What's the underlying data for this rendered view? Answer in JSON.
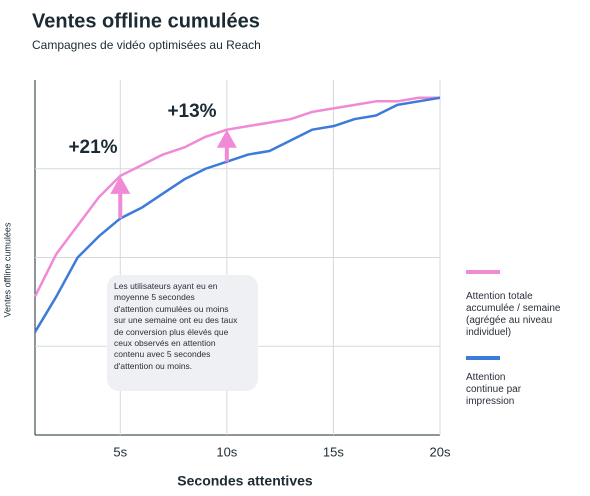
{
  "chart_data": {
    "type": "line",
    "title": "Ventes offline cumulées",
    "subtitle": "Campagnes de vidéo optimisées au Reach",
    "x_label": "Secondes attentives",
    "y_label": "Ventes offline cumulées",
    "x": [
      1,
      2,
      3,
      4,
      5,
      6,
      7,
      8,
      9,
      10,
      11,
      12,
      13,
      14,
      15,
      16,
      17,
      18,
      19,
      20
    ],
    "series": [
      {
        "name": "Attention totale accumulée / semaine (agrégée au niveau individuel)",
        "color": "#f08ad6",
        "values": [
          39,
          51,
          59,
          67,
          73,
          76,
          79,
          81,
          84,
          86,
          87,
          88,
          89,
          91,
          92,
          93,
          94,
          94,
          95,
          95
        ]
      },
      {
        "name": "Attention continue par impression",
        "color": "#3d7bd9",
        "values": [
          29,
          39,
          50,
          56,
          61,
          64,
          68,
          72,
          75,
          77,
          79,
          80,
          83,
          86,
          87,
          89,
          90,
          93,
          94,
          95
        ]
      }
    ],
    "xlim": [
      1,
      20
    ],
    "xticks": [
      {
        "value": 5,
        "label": "5s"
      },
      {
        "value": 10,
        "label": "10s"
      },
      {
        "value": 15,
        "label": "15s"
      },
      {
        "value": 20,
        "label": "20s"
      }
    ],
    "ylim": [
      0,
      100
    ],
    "ygrid": [
      25,
      50,
      75
    ],
    "annotations": [
      "+21%",
      "+13%"
    ],
    "note_lines": [
      "Les utilisateurs ayant eu en",
      "moyenne 5 secondes",
      "d'attention cumulées ou moins",
      "sur une semaine ont eu des taux",
      "de conversion plus élevés que",
      "ceux observés en attention",
      "contenu avec 5 secondes",
      "d'attention ou moins."
    ]
  }
}
